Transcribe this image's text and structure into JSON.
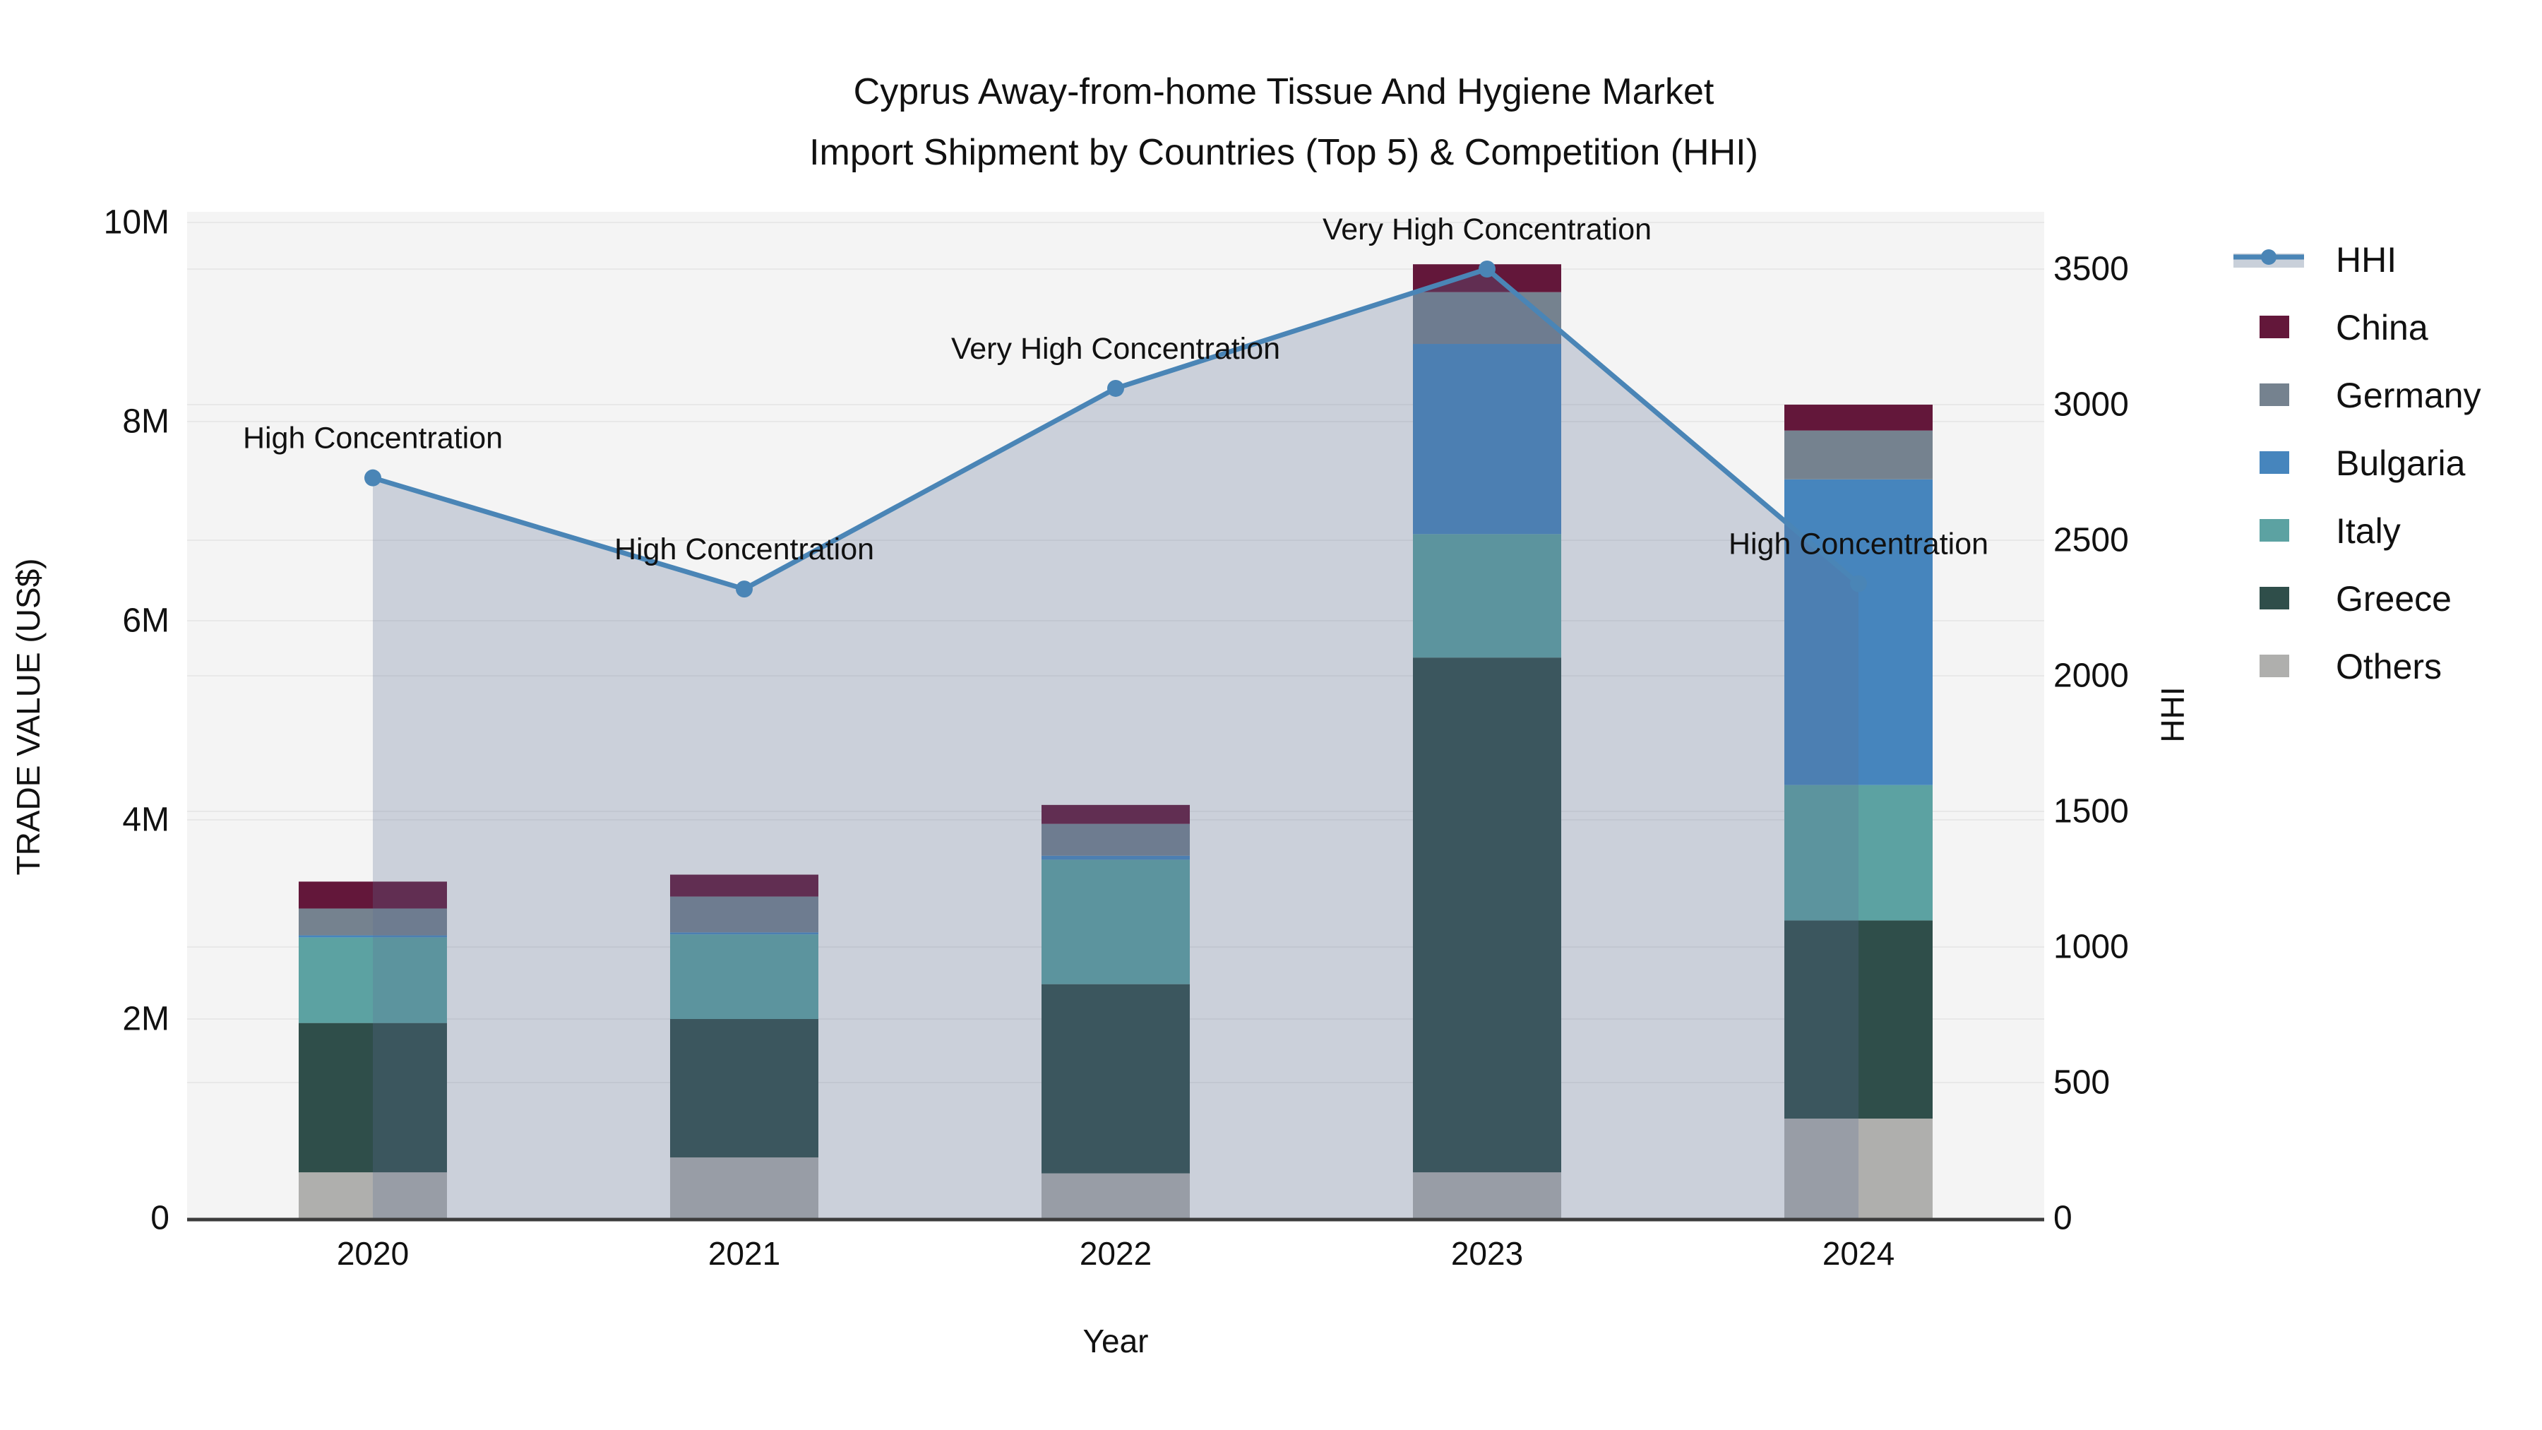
{
  "title": {
    "line1": "Cyprus Away-from-home Tissue And Hygiene Market",
    "line2": "Import Shipment by Countries (Top 5) & Competition (HHI)"
  },
  "axes": {
    "x_label": "Year",
    "left_label": "TRADE VALUE (US$)",
    "right_label": "HHI",
    "left_ticks": [
      {
        "value": 0,
        "label": "0"
      },
      {
        "value": 2,
        "label": "2M"
      },
      {
        "value": 4,
        "label": "4M"
      },
      {
        "value": 6,
        "label": "6M"
      },
      {
        "value": 8,
        "label": "8M"
      },
      {
        "value": 10,
        "label": "10M"
      }
    ],
    "right_ticks": [
      {
        "value": 0,
        "label": "0"
      },
      {
        "value": 500,
        "label": "500"
      },
      {
        "value": 1000,
        "label": "1000"
      },
      {
        "value": 1500,
        "label": "1500"
      },
      {
        "value": 2000,
        "label": "2000"
      },
      {
        "value": 2500,
        "label": "2500"
      },
      {
        "value": 3000,
        "label": "3000"
      },
      {
        "value": 3500,
        "label": "3500"
      }
    ],
    "left_range_millions": [
      0,
      10
    ],
    "right_range": [
      0,
      3500
    ],
    "grid": "on"
  },
  "chart_data": {
    "type": "combo: stacked bar (left axis, trade value US$ millions) + line with area (right axis, HHI)",
    "categories": [
      "2020",
      "2021",
      "2022",
      "2023",
      "2024"
    ],
    "unit": "million US$",
    "stack_order_bottom_to_top": [
      "Others",
      "Greece",
      "Italy",
      "Bulgaria",
      "Germany",
      "China"
    ],
    "series": [
      {
        "name": "China",
        "color": "#63173A",
        "values": [
          0.27,
          0.22,
          0.19,
          0.28,
          0.26
        ]
      },
      {
        "name": "Germany",
        "color": "#75828F",
        "values": [
          0.27,
          0.36,
          0.32,
          0.52,
          0.49
        ]
      },
      {
        "name": "Bulgaria",
        "color": "#4685BD",
        "values": [
          0.02,
          0.02,
          0.04,
          1.91,
          3.07
        ]
      },
      {
        "name": "Italy",
        "color": "#5CA2A2",
        "values": [
          0.86,
          0.85,
          1.25,
          1.24,
          1.36
        ]
      },
      {
        "name": "Greece",
        "color": "#2F4E4A",
        "values": [
          1.5,
          1.39,
          1.9,
          5.17,
          1.99
        ]
      },
      {
        "name": "Others",
        "color": "#AFAFAD",
        "values": [
          0.46,
          0.61,
          0.45,
          0.46,
          1.0
        ]
      }
    ],
    "bar_totals_millions": [
      3.38,
      3.45,
      4.15,
      9.58,
      8.17
    ],
    "line": {
      "name": "HHI",
      "color": "#4A85B6",
      "area_color": "rgba(93,112,146,0.27)",
      "values": [
        2730,
        2320,
        3060,
        3500,
        2340
      ],
      "annotations": [
        "High Concentration",
        "High Concentration",
        "Very High Concentration",
        "Very High Concentration",
        "High Concentration"
      ]
    },
    "legend_position": "right"
  },
  "legend": {
    "order": [
      "HHI",
      "China",
      "Germany",
      "Bulgaria",
      "Italy",
      "Greece",
      "Others"
    ]
  },
  "colors": {
    "plot_background": "#f4f4f4",
    "page_background": "#ffffff",
    "gridline": "#e8e8e8",
    "axis_line": "#3c3c3c",
    "text": "#111111"
  }
}
